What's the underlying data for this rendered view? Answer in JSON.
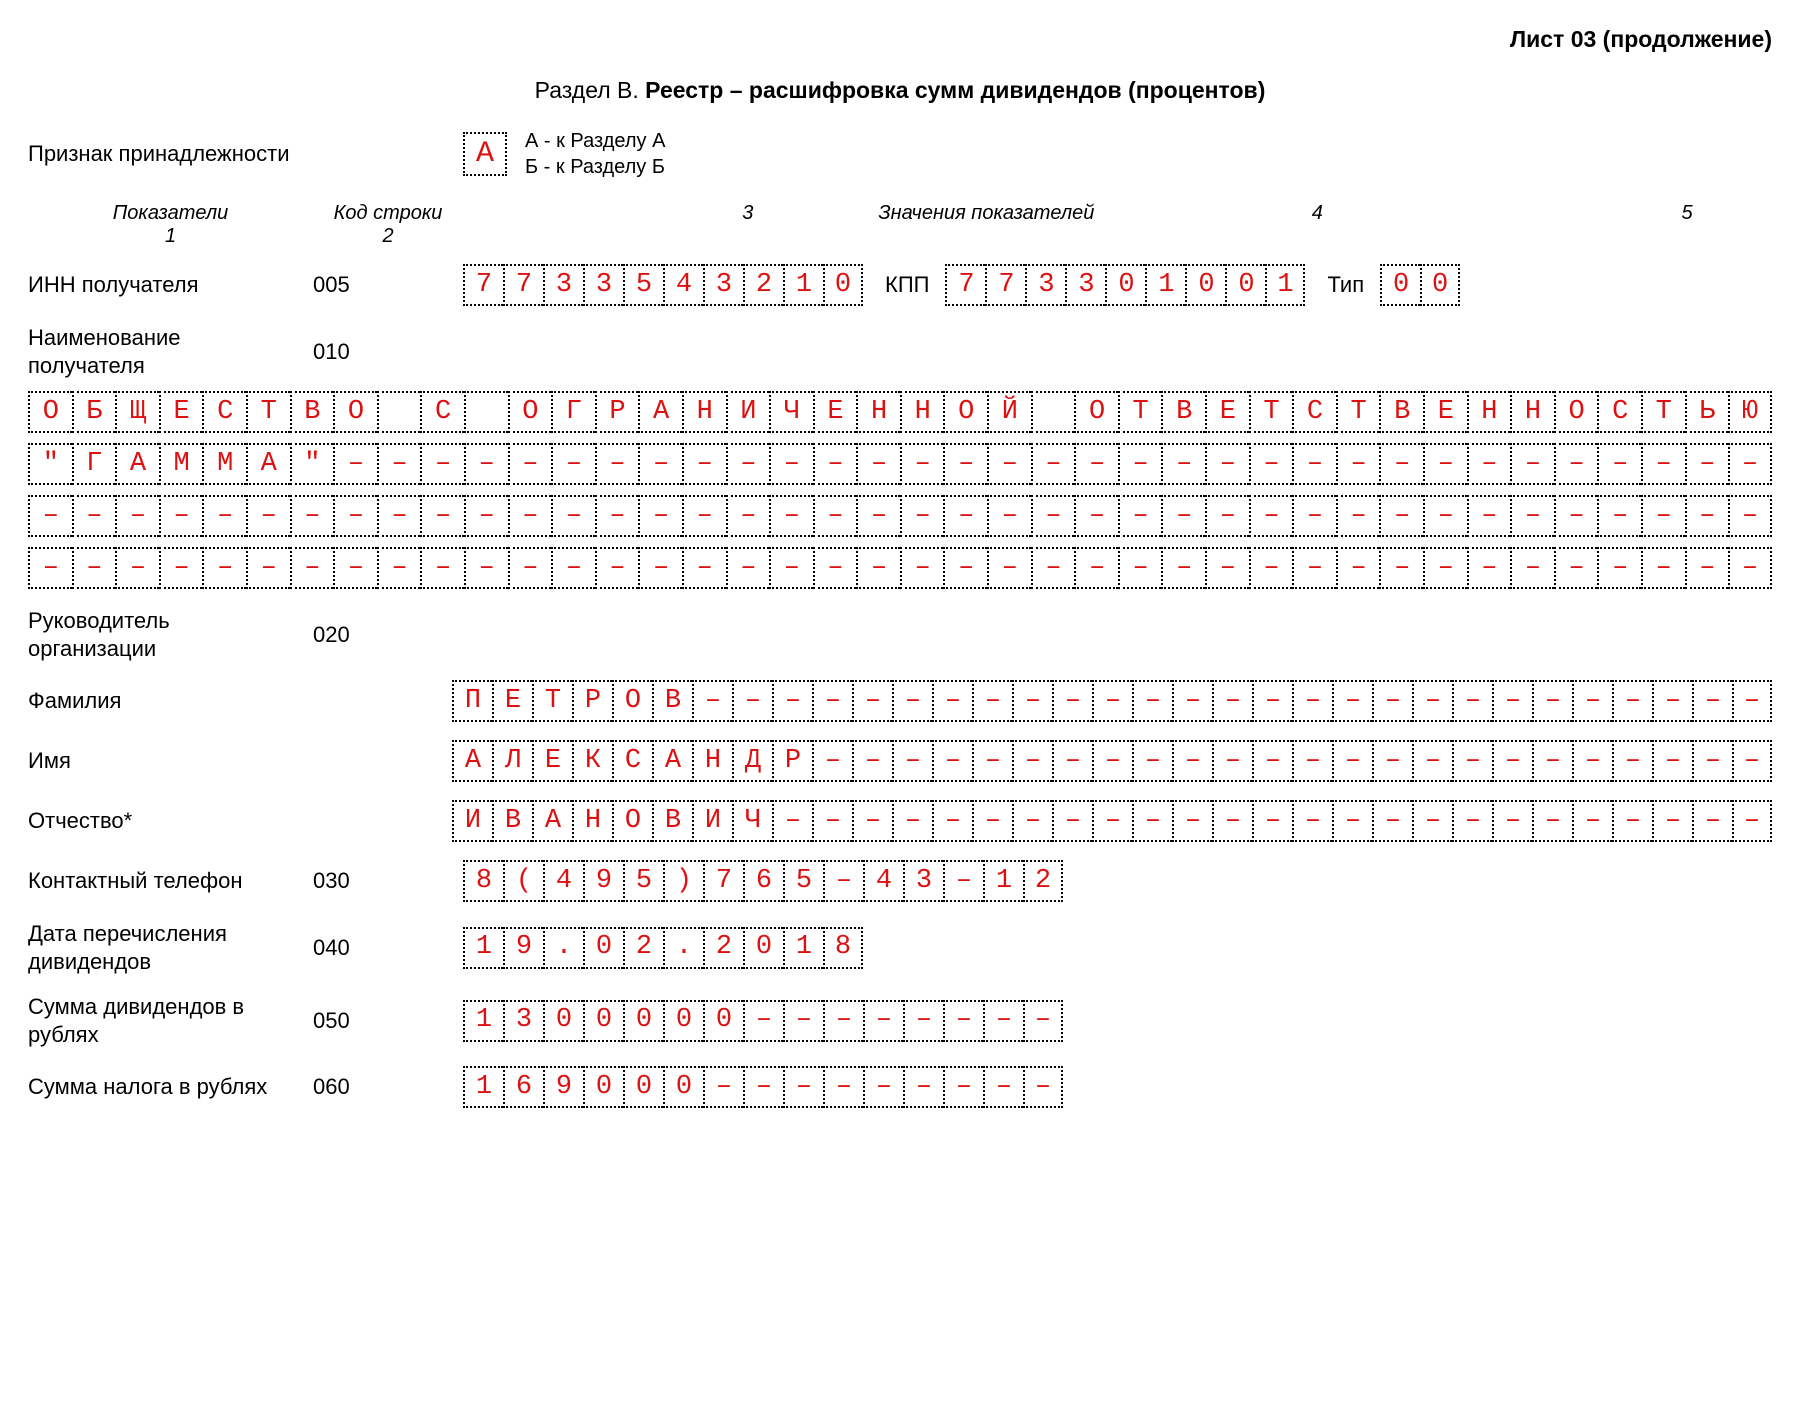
{
  "sheet_header": "Лист 03 (продолжение)",
  "section": {
    "prefix": "Раздел В. ",
    "title": "Реестр – расшифровка сумм дивидендов (процентов)"
  },
  "affiliation": {
    "label": "Признак принадлежности",
    "value": "А",
    "legend_a": "А - к Разделу А",
    "legend_b": "Б - к Разделу Б"
  },
  "columns": {
    "h1": "Показатели",
    "s1": "1",
    "h2": "Код строки",
    "s2": "2",
    "h3": "",
    "s3": "3",
    "midtitle": "Значения показателей",
    "h4": "",
    "s4": "4",
    "h5": "",
    "s5": "5"
  },
  "rows": {
    "inn": {
      "label": "ИНН получателя",
      "code": "005",
      "inn_cells": [
        "7",
        "7",
        "3",
        "3",
        "5",
        "4",
        "3",
        "2",
        "1",
        "0"
      ],
      "kpp_label": "КПП",
      "kpp_cells": [
        "7",
        "7",
        "3",
        "3",
        "0",
        "1",
        "0",
        "0",
        "1"
      ],
      "type_label": "Тип",
      "type_cells": [
        "0",
        "0"
      ]
    },
    "name": {
      "label": "Наименование получателя",
      "code": "010",
      "lines": [
        [
          "О",
          "Б",
          "Щ",
          "Е",
          "С",
          "Т",
          "В",
          "О",
          " ",
          "С",
          " ",
          "О",
          "Г",
          "Р",
          "А",
          "Н",
          "И",
          "Ч",
          "Е",
          "Н",
          "Н",
          "О",
          "Й",
          " ",
          "О",
          "Т",
          "В",
          "Е",
          "Т",
          "С",
          "Т",
          "В",
          "Е",
          "Н",
          "Н",
          "О",
          "С",
          "Т",
          "Ь",
          "Ю"
        ],
        [
          "\"",
          "Г",
          "А",
          "М",
          "М",
          "А",
          "\"",
          "–",
          "–",
          "–",
          "–",
          "–",
          "–",
          "–",
          "–",
          "–",
          "–",
          "–",
          "–",
          "–",
          "–",
          "–",
          "–",
          "–",
          "–",
          "–",
          "–",
          "–",
          "–",
          "–",
          "–",
          "–",
          "–",
          "–",
          "–",
          "–",
          "–",
          "–",
          "–",
          "–"
        ],
        [
          "–",
          "–",
          "–",
          "–",
          "–",
          "–",
          "–",
          "–",
          "–",
          "–",
          "–",
          "–",
          "–",
          "–",
          "–",
          "–",
          "–",
          "–",
          "–",
          "–",
          "–",
          "–",
          "–",
          "–",
          "–",
          "–",
          "–",
          "–",
          "–",
          "–",
          "–",
          "–",
          "–",
          "–",
          "–",
          "–",
          "–",
          "–",
          "–",
          "–"
        ],
        [
          "–",
          "–",
          "–",
          "–",
          "–",
          "–",
          "–",
          "–",
          "–",
          "–",
          "–",
          "–",
          "–",
          "–",
          "–",
          "–",
          "–",
          "–",
          "–",
          "–",
          "–",
          "–",
          "–",
          "–",
          "–",
          "–",
          "–",
          "–",
          "–",
          "–",
          "–",
          "–",
          "–",
          "–",
          "–",
          "–",
          "–",
          "–",
          "–",
          "–"
        ]
      ]
    },
    "head": {
      "label": "Руководитель организации",
      "code": "020"
    },
    "surname": {
      "label": "Фамилия",
      "cells": [
        "П",
        "Е",
        "Т",
        "Р",
        "О",
        "В",
        "–",
        "–",
        "–",
        "–",
        "–",
        "–",
        "–",
        "–",
        "–",
        "–",
        "–",
        "–",
        "–",
        "–",
        "–",
        "–",
        "–",
        "–",
        "–",
        "–",
        "–",
        "–",
        "–",
        "–",
        "–",
        "–",
        "–"
      ]
    },
    "firstname": {
      "label": "Имя",
      "cells": [
        "А",
        "Л",
        "Е",
        "К",
        "С",
        "А",
        "Н",
        "Д",
        "Р",
        "–",
        "–",
        "–",
        "–",
        "–",
        "–",
        "–",
        "–",
        "–",
        "–",
        "–",
        "–",
        "–",
        "–",
        "–",
        "–",
        "–",
        "–",
        "–",
        "–",
        "–",
        "–",
        "–",
        "–"
      ]
    },
    "patronymic": {
      "label": "Отчество*",
      "cells": [
        "И",
        "В",
        "А",
        "Н",
        "О",
        "В",
        "И",
        "Ч",
        "–",
        "–",
        "–",
        "–",
        "–",
        "–",
        "–",
        "–",
        "–",
        "–",
        "–",
        "–",
        "–",
        "–",
        "–",
        "–",
        "–",
        "–",
        "–",
        "–",
        "–",
        "–",
        "–",
        "–",
        "–"
      ]
    },
    "phone": {
      "label": "Контактный телефон",
      "code": "030",
      "cells": [
        "8",
        "(",
        "4",
        "9",
        "5",
        ")",
        "7",
        "6",
        "5",
        "-",
        "4",
        "3",
        "-",
        "1",
        "2"
      ]
    },
    "date": {
      "label": "Дата перечисления дивидендов",
      "code": "040",
      "cells": [
        "1",
        "9",
        ".",
        "0",
        "2",
        ".",
        "2",
        "0",
        "1",
        "8"
      ]
    },
    "sum_div": {
      "label": "Сумма дивидендов в рублях",
      "code": "050",
      "cells": [
        "1",
        "3",
        "0",
        "0",
        "0",
        "0",
        "0",
        "–",
        "–",
        "–",
        "–",
        "–",
        "–",
        "–",
        "–"
      ]
    },
    "sum_tax": {
      "label": "Сумма налога в рублях",
      "code": "060",
      "cells": [
        "1",
        "6",
        "9",
        "0",
        "0",
        "0",
        "–",
        "–",
        "–",
        "–",
        "–",
        "–",
        "–",
        "–",
        "–"
      ]
    }
  },
  "style": {
    "cell_text_color": "#d11a1a",
    "cell_border_color": "#000000",
    "font_family_cells": "Courier New",
    "name_row_cells": 40,
    "text_row_cells": 33,
    "phone_cells": 15,
    "date_cells": 10,
    "sum_cells": 15
  }
}
